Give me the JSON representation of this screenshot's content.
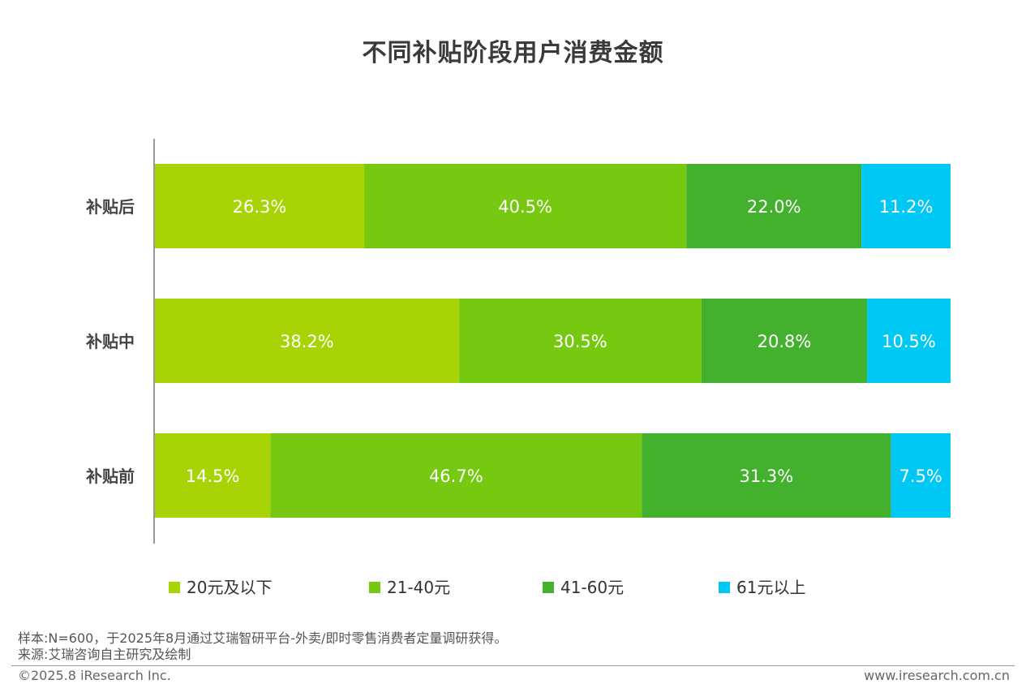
{
  "chart_data": {
    "type": "bar",
    "orientation": "horizontal",
    "stacked": true,
    "title": "不同补贴阶段用户消费金额",
    "categories": [
      "补贴后",
      "补贴中",
      "补贴前"
    ],
    "series": [
      {
        "name": "20元及以下",
        "color": "#a8d406",
        "values": [
          26.3,
          38.2,
          14.5
        ],
        "labels": [
          "26.3%",
          "38.2%",
          "14.5%"
        ]
      },
      {
        "name": "21-40元",
        "color": "#76c810",
        "values": [
          40.5,
          30.5,
          46.7
        ],
        "labels": [
          "40.5%",
          "30.5%",
          "46.7%"
        ]
      },
      {
        "name": "41-60元",
        "color": "#43b02e",
        "values": [
          22.0,
          20.8,
          31.3
        ],
        "labels": [
          "22.0%",
          "20.8%",
          "31.3%"
        ]
      },
      {
        "name": "61元以上",
        "color": "#00c8f5",
        "values": [
          11.2,
          10.5,
          7.5
        ],
        "labels": [
          "11.2%",
          "10.5%",
          "7.5%"
        ]
      }
    ],
    "xlim": [
      0,
      100
    ],
    "grid": false,
    "legend_position": "bottom"
  },
  "footer": {
    "sample_note": "样本:N=600，于2025年8月通过艾瑞智研平台-外卖/即时零售消费者定量调研获得。",
    "source_note": "来源:艾瑞咨询自主研究及绘制",
    "copyright": "©2025.8 iResearch Inc.",
    "website": "www.iresearch.com.cn"
  }
}
